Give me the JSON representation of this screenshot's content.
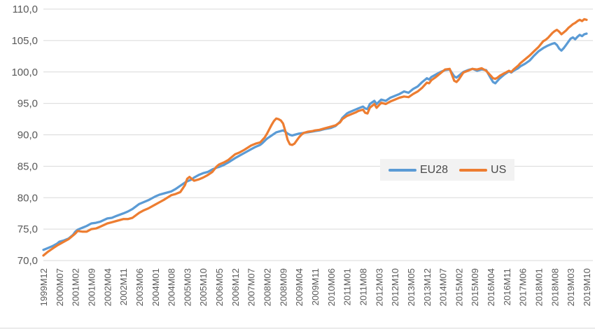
{
  "chart_data": {
    "type": "line",
    "title": "",
    "xlabel": "",
    "ylabel": "",
    "grid": true,
    "decimal_style": "comma",
    "colors": {
      "background": "#ffffff",
      "gridline": "#d9d9d9",
      "axis_text": "#595959",
      "legend_background": "#f2f2f2",
      "legend_text": "#4a4a4a",
      "eu28_line": "#5b9bd5",
      "us_line": "#ed7d31"
    },
    "y_axis": {
      "min": 70,
      "max": 110,
      "step": 5,
      "tick_values": [
        70,
        75,
        80,
        85,
        90,
        95,
        100,
        105,
        110
      ],
      "tick_labels": [
        "70,0",
        "75,0",
        "80,0",
        "85,0",
        "90,0",
        "95,0",
        "100,0",
        "105,0",
        "110,0"
      ]
    },
    "x_axis": {
      "unit": "month",
      "first_month": "1999M12",
      "last_month": "2019M10",
      "total_month_span": 238,
      "tick_month_index": [
        0,
        7,
        14,
        21,
        28,
        35,
        42,
        49,
        56,
        63,
        70,
        77,
        84,
        91,
        98,
        105,
        112,
        119,
        126,
        133,
        140,
        147,
        154,
        161,
        168,
        175,
        182,
        189,
        196,
        203,
        210,
        217,
        224,
        231,
        238
      ],
      "tick_labels": [
        "1999M12",
        "2000M07",
        "2001M02",
        "2001M09",
        "2002M04",
        "2002M11",
        "2003M06",
        "2004M01",
        "2004M08",
        "2005M03",
        "2005M10",
        "2006M05",
        "2006M12",
        "2007M07",
        "2008M02",
        "2008M09",
        "2009M04",
        "2009M11",
        "2010M06",
        "2011M01",
        "2011M08",
        "2012M03",
        "2012M10",
        "2013M05",
        "2013M12",
        "2014M07",
        "2015M02",
        "2015M09",
        "2016M04",
        "2016M11",
        "2017M06",
        "2018M01",
        "2018M08",
        "2019M03",
        "2019M10"
      ]
    },
    "legend": {
      "position": "center-right-inside",
      "items": [
        {
          "label": "EU28",
          "color": "#5b9bd5"
        },
        {
          "label": "US",
          "color": "#ed7d31"
        }
      ]
    },
    "series": [
      {
        "name": "EU28",
        "color": "#5b9bd5",
        "points": [
          [
            0,
            71.7
          ],
          [
            2,
            72.0
          ],
          [
            4,
            72.3
          ],
          [
            6,
            72.7
          ],
          [
            7,
            73.0
          ],
          [
            9,
            73.2
          ],
          [
            11,
            73.5
          ],
          [
            13,
            74.1
          ],
          [
            14,
            74.6
          ],
          [
            15,
            74.9
          ],
          [
            17,
            75.2
          ],
          [
            19,
            75.5
          ],
          [
            21,
            75.9
          ],
          [
            23,
            76.0
          ],
          [
            25,
            76.2
          ],
          [
            28,
            76.7
          ],
          [
            30,
            76.8
          ],
          [
            32,
            77.1
          ],
          [
            35,
            77.5
          ],
          [
            37,
            77.8
          ],
          [
            39,
            78.2
          ],
          [
            42,
            79.0
          ],
          [
            44,
            79.3
          ],
          [
            46,
            79.6
          ],
          [
            49,
            80.2
          ],
          [
            51,
            80.5
          ],
          [
            53,
            80.7
          ],
          [
            56,
            81.0
          ],
          [
            58,
            81.4
          ],
          [
            60,
            81.9
          ],
          [
            62,
            82.4
          ],
          [
            63,
            82.6
          ],
          [
            65,
            82.9
          ],
          [
            66,
            83.2
          ],
          [
            68,
            83.6
          ],
          [
            70,
            83.9
          ],
          [
            72,
            84.1
          ],
          [
            74,
            84.5
          ],
          [
            76,
            84.8
          ],
          [
            77,
            84.9
          ],
          [
            79,
            85.2
          ],
          [
            81,
            85.6
          ],
          [
            84,
            86.3
          ],
          [
            86,
            86.7
          ],
          [
            88,
            87.1
          ],
          [
            91,
            87.7
          ],
          [
            93,
            88.1
          ],
          [
            95,
            88.4
          ],
          [
            96,
            88.7
          ],
          [
            98,
            89.4
          ],
          [
            100,
            89.9
          ],
          [
            102,
            90.4
          ],
          [
            104,
            90.6
          ],
          [
            105,
            90.7
          ],
          [
            106,
            90.5
          ],
          [
            107,
            90.2
          ],
          [
            108,
            90.0
          ],
          [
            109,
            89.9
          ],
          [
            110,
            90.0
          ],
          [
            112,
            90.2
          ],
          [
            114,
            90.3
          ],
          [
            116,
            90.4
          ],
          [
            119,
            90.6
          ],
          [
            121,
            90.7
          ],
          [
            123,
            90.9
          ],
          [
            126,
            91.1
          ],
          [
            128,
            91.4
          ],
          [
            130,
            92.1
          ],
          [
            131,
            92.7
          ],
          [
            133,
            93.4
          ],
          [
            134,
            93.6
          ],
          [
            136,
            93.9
          ],
          [
            138,
            94.2
          ],
          [
            140,
            94.5
          ],
          [
            141,
            94.2
          ],
          [
            142,
            94.1
          ],
          [
            143,
            94.9
          ],
          [
            145,
            95.4
          ],
          [
            146,
            94.9
          ],
          [
            148,
            95.6
          ],
          [
            150,
            95.4
          ],
          [
            152,
            95.9
          ],
          [
            154,
            96.2
          ],
          [
            156,
            96.5
          ],
          [
            158,
            96.9
          ],
          [
            160,
            96.7
          ],
          [
            162,
            97.3
          ],
          [
            164,
            97.7
          ],
          [
            166,
            98.4
          ],
          [
            168,
            99.0
          ],
          [
            169,
            98.8
          ],
          [
            170,
            99.2
          ],
          [
            172,
            99.6
          ],
          [
            174,
            100.0
          ],
          [
            176,
            100.3
          ],
          [
            178,
            100.4
          ],
          [
            180,
            99.3
          ],
          [
            181,
            99.1
          ],
          [
            182,
            99.4
          ],
          [
            184,
            100.0
          ],
          [
            186,
            100.3
          ],
          [
            188,
            100.5
          ],
          [
            190,
            100.2
          ],
          [
            192,
            100.4
          ],
          [
            194,
            100.3
          ],
          [
            196,
            99.0
          ],
          [
            197,
            98.4
          ],
          [
            198,
            98.2
          ],
          [
            199,
            98.6
          ],
          [
            200,
            99.0
          ],
          [
            202,
            99.6
          ],
          [
            204,
            100.1
          ],
          [
            205,
            99.9
          ],
          [
            206,
            100.2
          ],
          [
            208,
            100.6
          ],
          [
            209,
            100.9
          ],
          [
            211,
            101.3
          ],
          [
            213,
            101.8
          ],
          [
            215,
            102.6
          ],
          [
            217,
            103.3
          ],
          [
            219,
            103.8
          ],
          [
            221,
            104.2
          ],
          [
            223,
            104.5
          ],
          [
            224,
            104.6
          ],
          [
            225,
            104.3
          ],
          [
            226,
            103.7
          ],
          [
            227,
            103.4
          ],
          [
            228,
            103.8
          ],
          [
            229,
            104.3
          ],
          [
            230,
            104.8
          ],
          [
            231,
            105.3
          ],
          [
            232,
            105.5
          ],
          [
            233,
            105.2
          ],
          [
            234,
            105.6
          ],
          [
            235,
            105.9
          ],
          [
            236,
            105.7
          ],
          [
            237,
            106.0
          ],
          [
            238,
            106.1
          ]
        ]
      },
      {
        "name": "US",
        "color": "#ed7d31",
        "points": [
          [
            0,
            70.8
          ],
          [
            2,
            71.4
          ],
          [
            4,
            71.9
          ],
          [
            6,
            72.4
          ],
          [
            7,
            72.6
          ],
          [
            9,
            73.0
          ],
          [
            11,
            73.4
          ],
          [
            13,
            74.0
          ],
          [
            14,
            74.3
          ],
          [
            15,
            74.7
          ],
          [
            17,
            74.6
          ],
          [
            19,
            74.6
          ],
          [
            21,
            75.0
          ],
          [
            23,
            75.1
          ],
          [
            25,
            75.4
          ],
          [
            28,
            75.9
          ],
          [
            30,
            76.1
          ],
          [
            32,
            76.3
          ],
          [
            35,
            76.6
          ],
          [
            37,
            76.6
          ],
          [
            39,
            76.8
          ],
          [
            42,
            77.6
          ],
          [
            44,
            78.0
          ],
          [
            46,
            78.3
          ],
          [
            49,
            78.9
          ],
          [
            51,
            79.3
          ],
          [
            53,
            79.7
          ],
          [
            56,
            80.4
          ],
          [
            58,
            80.6
          ],
          [
            60,
            80.9
          ],
          [
            62,
            82.0
          ],
          [
            63,
            83.0
          ],
          [
            64,
            83.3
          ],
          [
            65,
            83.0
          ],
          [
            66,
            82.7
          ],
          [
            68,
            82.9
          ],
          [
            70,
            83.2
          ],
          [
            72,
            83.6
          ],
          [
            74,
            84.1
          ],
          [
            76,
            85.0
          ],
          [
            77,
            85.3
          ],
          [
            79,
            85.6
          ],
          [
            81,
            86.0
          ],
          [
            84,
            86.9
          ],
          [
            86,
            87.2
          ],
          [
            88,
            87.6
          ],
          [
            91,
            88.3
          ],
          [
            93,
            88.6
          ],
          [
            95,
            88.8
          ],
          [
            96,
            89.2
          ],
          [
            97,
            89.6
          ],
          [
            98,
            90.2
          ],
          [
            99,
            90.9
          ],
          [
            100,
            91.6
          ],
          [
            101,
            92.2
          ],
          [
            102,
            92.6
          ],
          [
            103,
            92.5
          ],
          [
            104,
            92.3
          ],
          [
            105,
            91.8
          ],
          [
            106,
            90.6
          ],
          [
            107,
            89.2
          ],
          [
            108,
            88.5
          ],
          [
            109,
            88.4
          ],
          [
            110,
            88.6
          ],
          [
            111,
            89.1
          ],
          [
            112,
            89.6
          ],
          [
            113,
            90.0
          ],
          [
            114,
            90.3
          ],
          [
            116,
            90.5
          ],
          [
            118,
            90.6
          ],
          [
            119,
            90.7
          ],
          [
            121,
            90.8
          ],
          [
            123,
            91.0
          ],
          [
            126,
            91.3
          ],
          [
            128,
            91.5
          ],
          [
            130,
            92.0
          ],
          [
            131,
            92.5
          ],
          [
            133,
            93.0
          ],
          [
            135,
            93.3
          ],
          [
            137,
            93.6
          ],
          [
            138,
            93.8
          ],
          [
            140,
            94.0
          ],
          [
            141,
            93.5
          ],
          [
            142,
            93.4
          ],
          [
            143,
            94.3
          ],
          [
            145,
            94.9
          ],
          [
            146,
            94.3
          ],
          [
            148,
            95.1
          ],
          [
            150,
            94.9
          ],
          [
            152,
            95.3
          ],
          [
            154,
            95.6
          ],
          [
            156,
            95.9
          ],
          [
            158,
            96.1
          ],
          [
            160,
            96.0
          ],
          [
            162,
            96.5
          ],
          [
            164,
            96.9
          ],
          [
            166,
            97.5
          ],
          [
            168,
            98.3
          ],
          [
            169,
            98.2
          ],
          [
            170,
            98.7
          ],
          [
            172,
            99.2
          ],
          [
            174,
            99.8
          ],
          [
            176,
            100.4
          ],
          [
            178,
            100.5
          ],
          [
            180,
            98.6
          ],
          [
            181,
            98.4
          ],
          [
            182,
            98.8
          ],
          [
            184,
            99.9
          ],
          [
            186,
            100.2
          ],
          [
            188,
            100.5
          ],
          [
            190,
            100.4
          ],
          [
            192,
            100.6
          ],
          [
            194,
            100.2
          ],
          [
            196,
            99.4
          ],
          [
            197,
            99.0
          ],
          [
            198,
            98.9
          ],
          [
            199,
            99.1
          ],
          [
            200,
            99.4
          ],
          [
            202,
            99.8
          ],
          [
            204,
            100.2
          ],
          [
            205,
            100.0
          ],
          [
            206,
            100.4
          ],
          [
            208,
            101.0
          ],
          [
            209,
            101.4
          ],
          [
            211,
            102.0
          ],
          [
            213,
            102.6
          ],
          [
            215,
            103.3
          ],
          [
            217,
            104.0
          ],
          [
            219,
            104.9
          ],
          [
            220,
            105.1
          ],
          [
            221,
            105.4
          ],
          [
            223,
            106.2
          ],
          [
            224,
            106.5
          ],
          [
            225,
            106.7
          ],
          [
            226,
            106.4
          ],
          [
            227,
            106.0
          ],
          [
            228,
            106.3
          ],
          [
            229,
            106.6
          ],
          [
            230,
            107.0
          ],
          [
            231,
            107.3
          ],
          [
            232,
            107.6
          ],
          [
            233,
            107.8
          ],
          [
            234,
            108.1
          ],
          [
            235,
            108.3
          ],
          [
            236,
            108.1
          ],
          [
            237,
            108.4
          ],
          [
            238,
            108.3
          ]
        ]
      }
    ]
  }
}
